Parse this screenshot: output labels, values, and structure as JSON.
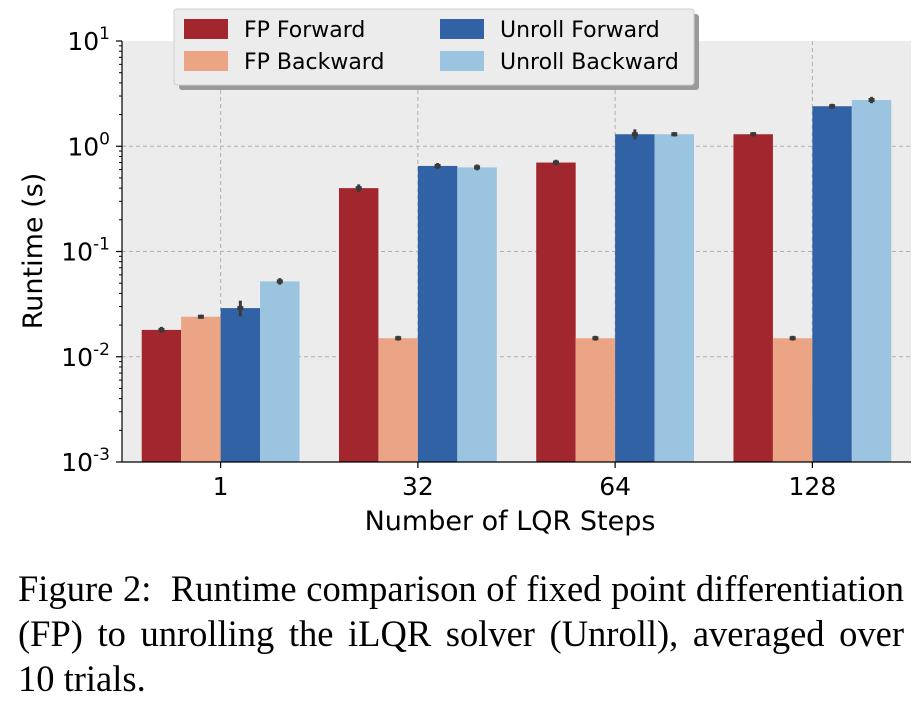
{
  "chart_data": {
    "type": "bar",
    "categories": [
      "1",
      "32",
      "64",
      "128"
    ],
    "xlabel": "Number of LQR Steps",
    "ylabel": "Runtime (s)",
    "yscale": "log",
    "ylim": [
      0.001,
      10
    ],
    "yticks": [
      {
        "value": 10,
        "base": "10",
        "exp": "1"
      },
      {
        "value": 1,
        "base": "10",
        "exp": "0"
      },
      {
        "value": 0.1,
        "base": "10",
        "exp": "-1"
      },
      {
        "value": 0.01,
        "base": "10",
        "exp": "-2"
      },
      {
        "value": 0.001,
        "base": "10",
        "exp": "-3"
      }
    ],
    "grid": true,
    "legend_position": "top",
    "series": [
      {
        "name": "FP Forward",
        "color": "#a1262e",
        "values": [
          0.018,
          0.4,
          0.7,
          1.3
        ],
        "errors": [
          0.0006,
          0.02,
          0.02,
          0.02
        ]
      },
      {
        "name": "FP Backward",
        "color": "#eba585",
        "values": [
          0.024,
          0.015,
          0.015,
          0.015
        ],
        "errors": [
          0.0003,
          0.0003,
          0.0003,
          0.0003
        ]
      },
      {
        "name": "Unroll Forward",
        "color": "#3162a6",
        "values": [
          0.029,
          0.65,
          1.3,
          2.4
        ],
        "errors": [
          0.004,
          0.02,
          0.1,
          0.05
        ]
      },
      {
        "name": "Unroll Backward",
        "color": "#9ac4df",
        "values": [
          0.052,
          0.63,
          1.3,
          2.75
        ],
        "errors": [
          0.002,
          0.02,
          0.02,
          0.1
        ]
      }
    ]
  },
  "caption": {
    "label": "Figure 2:",
    "text": "Runtime comparison of fixed point differentiation (FP) to unrolling the iLQR solver (Unroll), averaged over 10 trials."
  }
}
